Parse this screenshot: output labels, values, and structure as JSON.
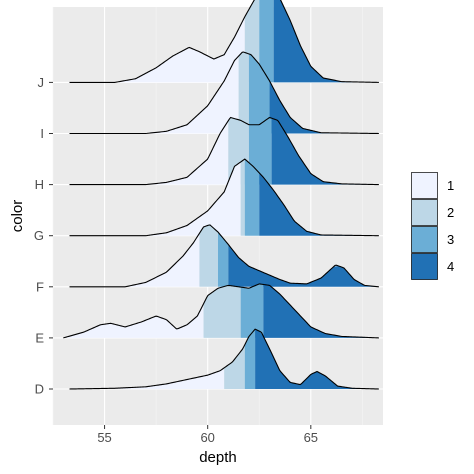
{
  "chart_data": {
    "type": "ridgeline",
    "xlabel": "depth",
    "ylabel": "color",
    "xlim": [
      52.5,
      68.5
    ],
    "x_ticks": [
      55,
      60,
      65
    ],
    "x_tick_labels": [
      "55",
      "60",
      "65"
    ],
    "categories": [
      "D",
      "E",
      "F",
      "G",
      "H",
      "I",
      "J"
    ],
    "grid": true,
    "legend_position": "right",
    "legend": [
      {
        "label": "1",
        "color": "#eff3ff"
      },
      {
        "label": "2",
        "color": "#bdd7e7"
      },
      {
        "label": "3",
        "color": "#6baed6"
      },
      {
        "label": "4",
        "color": "#2171b5"
      }
    ],
    "series": [
      {
        "name": "D",
        "x_range": [
          53.3,
          68.3
        ],
        "quartiles": [
          60.8,
          61.8,
          62.3
        ],
        "density": [
          [
            53.3,
            0
          ],
          [
            55.5,
            0.01
          ],
          [
            57.0,
            0.03
          ],
          [
            58.0,
            0.07
          ],
          [
            59.0,
            0.13
          ],
          [
            60.0,
            0.19
          ],
          [
            60.6,
            0.25
          ],
          [
            61.2,
            0.37
          ],
          [
            61.7,
            0.55
          ],
          [
            62.0,
            0.72
          ],
          [
            62.3,
            0.82
          ],
          [
            62.6,
            0.78
          ],
          [
            63.0,
            0.55
          ],
          [
            63.5,
            0.25
          ],
          [
            64.0,
            0.09
          ],
          [
            64.5,
            0.06
          ],
          [
            65.0,
            0.2
          ],
          [
            65.3,
            0.24
          ],
          [
            65.7,
            0.18
          ],
          [
            66.3,
            0.04
          ],
          [
            67.0,
            0.01
          ],
          [
            68.3,
            0
          ]
        ]
      },
      {
        "name": "E",
        "x_range": [
          53.0,
          68.3
        ],
        "quartiles": [
          59.8,
          61.6,
          62.7
        ],
        "density": [
          [
            53.0,
            0
          ],
          [
            54.0,
            0.08
          ],
          [
            54.8,
            0.18
          ],
          [
            55.3,
            0.2
          ],
          [
            56.0,
            0.15
          ],
          [
            56.8,
            0.22
          ],
          [
            57.5,
            0.3
          ],
          [
            58.0,
            0.25
          ],
          [
            58.5,
            0.12
          ],
          [
            59.0,
            0.18
          ],
          [
            59.5,
            0.3
          ],
          [
            60.0,
            0.58
          ],
          [
            60.5,
            0.68
          ],
          [
            61.0,
            0.72
          ],
          [
            61.5,
            0.7
          ],
          [
            62.0,
            0.68
          ],
          [
            62.5,
            0.74
          ],
          [
            63.0,
            0.72
          ],
          [
            63.5,
            0.6
          ],
          [
            64.0,
            0.45
          ],
          [
            64.5,
            0.3
          ],
          [
            65.0,
            0.15
          ],
          [
            65.7,
            0.06
          ],
          [
            66.5,
            0.02
          ],
          [
            68.3,
            0
          ]
        ]
      },
      {
        "name": "F",
        "x_range": [
          53.3,
          68.3
        ],
        "quartiles": [
          59.6,
          60.5,
          61.0
        ],
        "density": [
          [
            53.3,
            0
          ],
          [
            56.0,
            0
          ],
          [
            57.0,
            0.06
          ],
          [
            58.0,
            0.2
          ],
          [
            58.8,
            0.42
          ],
          [
            59.3,
            0.6
          ],
          [
            59.8,
            0.82
          ],
          [
            60.1,
            0.85
          ],
          [
            60.5,
            0.75
          ],
          [
            61.0,
            0.58
          ],
          [
            61.5,
            0.4
          ],
          [
            62.0,
            0.28
          ],
          [
            62.5,
            0.22
          ],
          [
            63.0,
            0.16
          ],
          [
            63.5,
            0.1
          ],
          [
            64.0,
            0.05
          ],
          [
            64.8,
            0.04
          ],
          [
            65.5,
            0.12
          ],
          [
            66.2,
            0.3
          ],
          [
            66.6,
            0.26
          ],
          [
            67.1,
            0.1
          ],
          [
            67.6,
            0.02
          ],
          [
            68.3,
            0
          ]
        ]
      },
      {
        "name": "G",
        "x_range": [
          53.3,
          68.3
        ],
        "quartiles": [
          61.6,
          61.8,
          62.5
        ],
        "density": [
          [
            53.3,
            0
          ],
          [
            57.0,
            0
          ],
          [
            58.0,
            0.04
          ],
          [
            59.0,
            0.14
          ],
          [
            60.0,
            0.34
          ],
          [
            60.8,
            0.6
          ],
          [
            61.3,
            0.95
          ],
          [
            61.8,
            1.05
          ],
          [
            62.2,
            0.95
          ],
          [
            62.7,
            0.8
          ],
          [
            63.2,
            0.62
          ],
          [
            63.7,
            0.42
          ],
          [
            64.2,
            0.2
          ],
          [
            64.8,
            0.06
          ],
          [
            65.5,
            0.01
          ],
          [
            68.3,
            0
          ]
        ]
      },
      {
        "name": "H",
        "x_range": [
          53.3,
          68.3
        ],
        "quartiles": [
          61.0,
          62.0,
          63.1
        ],
        "density": [
          [
            53.3,
            0
          ],
          [
            57.0,
            0
          ],
          [
            58.0,
            0.03
          ],
          [
            59.0,
            0.1
          ],
          [
            60.0,
            0.35
          ],
          [
            60.6,
            0.7
          ],
          [
            61.1,
            0.92
          ],
          [
            61.6,
            0.88
          ],
          [
            62.0,
            0.82
          ],
          [
            62.5,
            0.82
          ],
          [
            63.0,
            0.92
          ],
          [
            63.4,
            0.88
          ],
          [
            63.9,
            0.65
          ],
          [
            64.4,
            0.4
          ],
          [
            65.0,
            0.15
          ],
          [
            65.6,
            0.04
          ],
          [
            66.5,
            0.01
          ],
          [
            68.3,
            0
          ]
        ]
      },
      {
        "name": "I",
        "x_range": [
          53.3,
          68.3
        ],
        "quartiles": [
          61.5,
          62.0,
          63.0
        ],
        "density": [
          [
            53.3,
            0
          ],
          [
            57.0,
            0
          ],
          [
            58.0,
            0.03
          ],
          [
            59.0,
            0.12
          ],
          [
            60.0,
            0.38
          ],
          [
            60.8,
            0.72
          ],
          [
            61.3,
            1.0
          ],
          [
            61.7,
            1.12
          ],
          [
            62.1,
            1.08
          ],
          [
            62.5,
            0.95
          ],
          [
            63.0,
            0.72
          ],
          [
            63.5,
            0.45
          ],
          [
            64.0,
            0.22
          ],
          [
            64.6,
            0.07
          ],
          [
            65.5,
            0.01
          ],
          [
            68.3,
            0
          ]
        ]
      },
      {
        "name": "J",
        "x_range": [
          53.3,
          68.3
        ],
        "quartiles": [
          61.8,
          62.5,
          63.2
        ],
        "density": [
          [
            53.3,
            0
          ],
          [
            55.5,
            0
          ],
          [
            56.5,
            0.05
          ],
          [
            57.5,
            0.2
          ],
          [
            58.3,
            0.36
          ],
          [
            59.1,
            0.48
          ],
          [
            59.6,
            0.42
          ],
          [
            60.3,
            0.32
          ],
          [
            60.8,
            0.38
          ],
          [
            61.3,
            0.62
          ],
          [
            61.8,
            0.9
          ],
          [
            62.3,
            1.15
          ],
          [
            62.8,
            1.32
          ],
          [
            63.1,
            1.3
          ],
          [
            63.5,
            1.15
          ],
          [
            64.0,
            0.85
          ],
          [
            64.5,
            0.5
          ],
          [
            65.0,
            0.22
          ],
          [
            65.6,
            0.06
          ],
          [
            66.5,
            0.01
          ],
          [
            68.3,
            0
          ]
        ]
      }
    ]
  }
}
